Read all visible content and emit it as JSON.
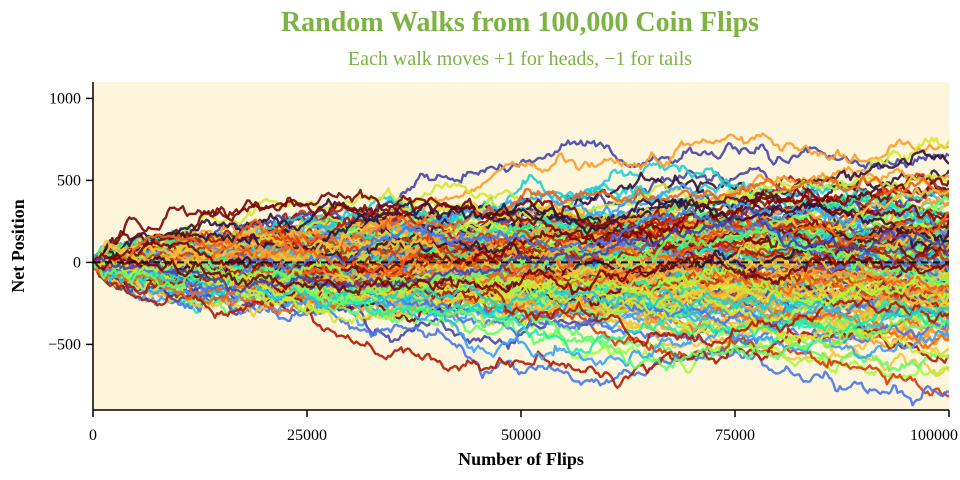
{
  "colors": {
    "title": "#7cb342",
    "plot_background": "#fdf5dc",
    "zero_line": "#111111",
    "palette": [
      "#30123b",
      "#4145ab",
      "#4675ed",
      "#39a2fc",
      "#1bcfd4",
      "#24eca6",
      "#61fc6c",
      "#a4fc3b",
      "#d1e834",
      "#f3c63a",
      "#fe9b2d",
      "#f36315",
      "#d93806",
      "#b11901",
      "#7a0403"
    ]
  },
  "chart_data": {
    "type": "line",
    "title": "Random Walks from 100,000 Coin Flips",
    "subtitle": "Each walk moves +1 for heads, −1 for tails",
    "xlabel": "Number of Flips",
    "ylabel": "Net Position",
    "xlim": [
      0,
      100000
    ],
    "ylim": [
      -900,
      1100
    ],
    "x_ticks": [
      0,
      25000,
      50000,
      75000,
      100000
    ],
    "x_tick_labels": [
      "0",
      "25000",
      "50000",
      "75000",
      "100000"
    ],
    "y_ticks": [
      -500,
      0,
      500,
      1000
    ],
    "y_tick_labels": [
      "−500",
      "0",
      "500",
      "1000"
    ],
    "reference_line": {
      "y": 0,
      "style": "dashed"
    },
    "num_walks": 160,
    "samples_per_walk": 400,
    "step_size": 1,
    "grid": false,
    "legend": "none"
  }
}
